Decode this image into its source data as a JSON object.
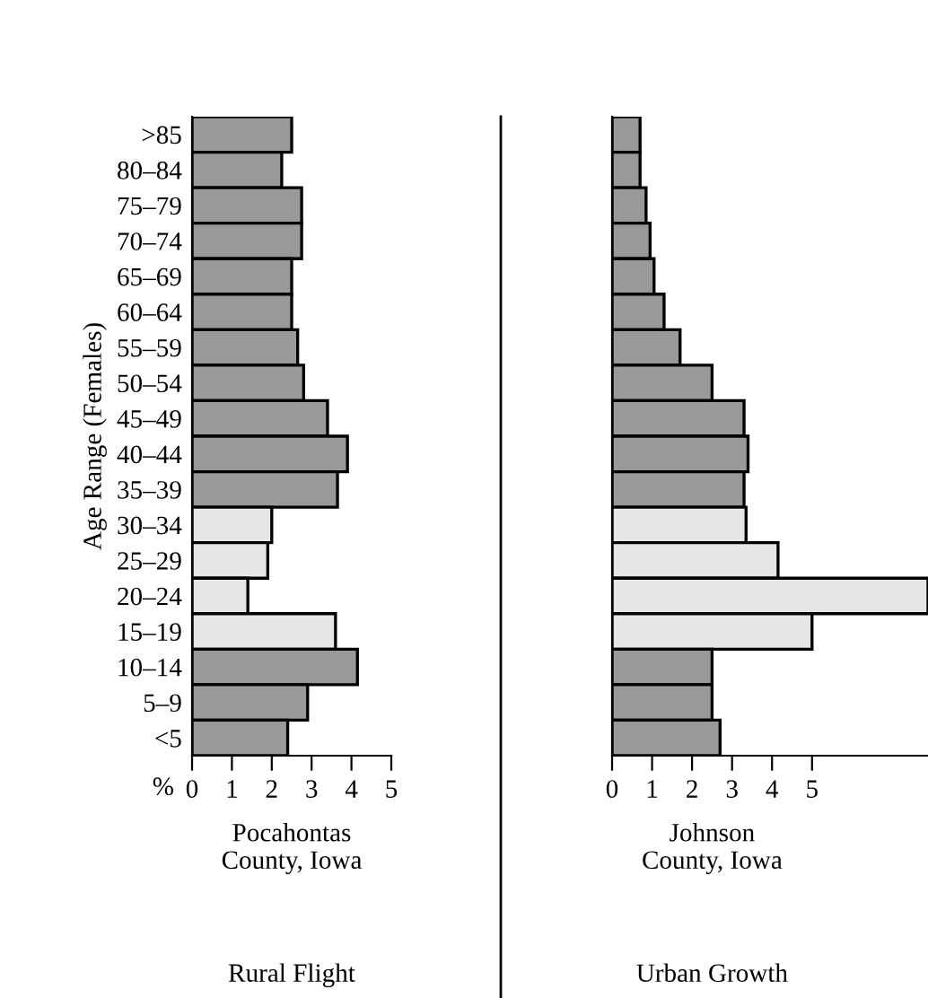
{
  "chart_data": [
    {
      "type": "bar",
      "orientation": "horizontal",
      "categories": [
        ">85",
        "80–84",
        "75–79",
        "70–74",
        "65–69",
        "60–64",
        "55–59",
        "50–54",
        "45–49",
        "40–44",
        "35–39",
        "30–34",
        "25–29",
        "20–24",
        "15–19",
        "10–14",
        "5–9",
        "<5"
      ],
      "values": [
        2.5,
        2.25,
        2.75,
        2.75,
        2.5,
        2.5,
        2.65,
        2.8,
        3.4,
        3.9,
        3.65,
        2.0,
        1.9,
        1.4,
        3.6,
        4.15,
        2.9,
        2.4
      ],
      "colors": [
        "#999999",
        "#999999",
        "#999999",
        "#999999",
        "#999999",
        "#999999",
        "#999999",
        "#999999",
        "#999999",
        "#999999",
        "#999999",
        "#e6e6e6",
        "#e6e6e6",
        "#e6e6e6",
        "#e6e6e6",
        "#999999",
        "#999999",
        "#999999"
      ],
      "xlim": [
        0,
        5
      ],
      "xticks": [
        0,
        1,
        2,
        3,
        4,
        5
      ],
      "ylabel": "Age Range (Females)",
      "xlabel": "Pocahontas\nCounty, Iowa",
      "subtitle": "Rural Flight",
      "annotations": [
        "%"
      ],
      "grid": false,
      "legend": false
    },
    {
      "type": "bar",
      "orientation": "horizontal",
      "categories": [
        null,
        null,
        null,
        null,
        null,
        null,
        null,
        null,
        null,
        null,
        null,
        null,
        null,
        null,
        null,
        null,
        null,
        null
      ],
      "values": [
        0.7,
        0.7,
        0.85,
        0.95,
        1.05,
        1.3,
        1.7,
        2.5,
        3.3,
        3.4,
        3.3,
        3.35,
        4.15,
        7.9,
        5.0,
        2.5,
        2.5,
        2.7
      ],
      "colors": [
        "#999999",
        "#999999",
        "#999999",
        "#999999",
        "#999999",
        "#999999",
        "#999999",
        "#999999",
        "#999999",
        "#999999",
        "#999999",
        "#e6e6e6",
        "#e6e6e6",
        "#e6e6e6",
        "#e6e6e6",
        "#999999",
        "#999999",
        "#999999"
      ],
      "xlim": [
        0,
        7.9
      ],
      "xticks": [
        0,
        1,
        2,
        3,
        4,
        5
      ],
      "xlabel": "Johnson\nCounty, Iowa",
      "subtitle": "Urban Growth",
      "grid": false,
      "legend": false
    }
  ]
}
